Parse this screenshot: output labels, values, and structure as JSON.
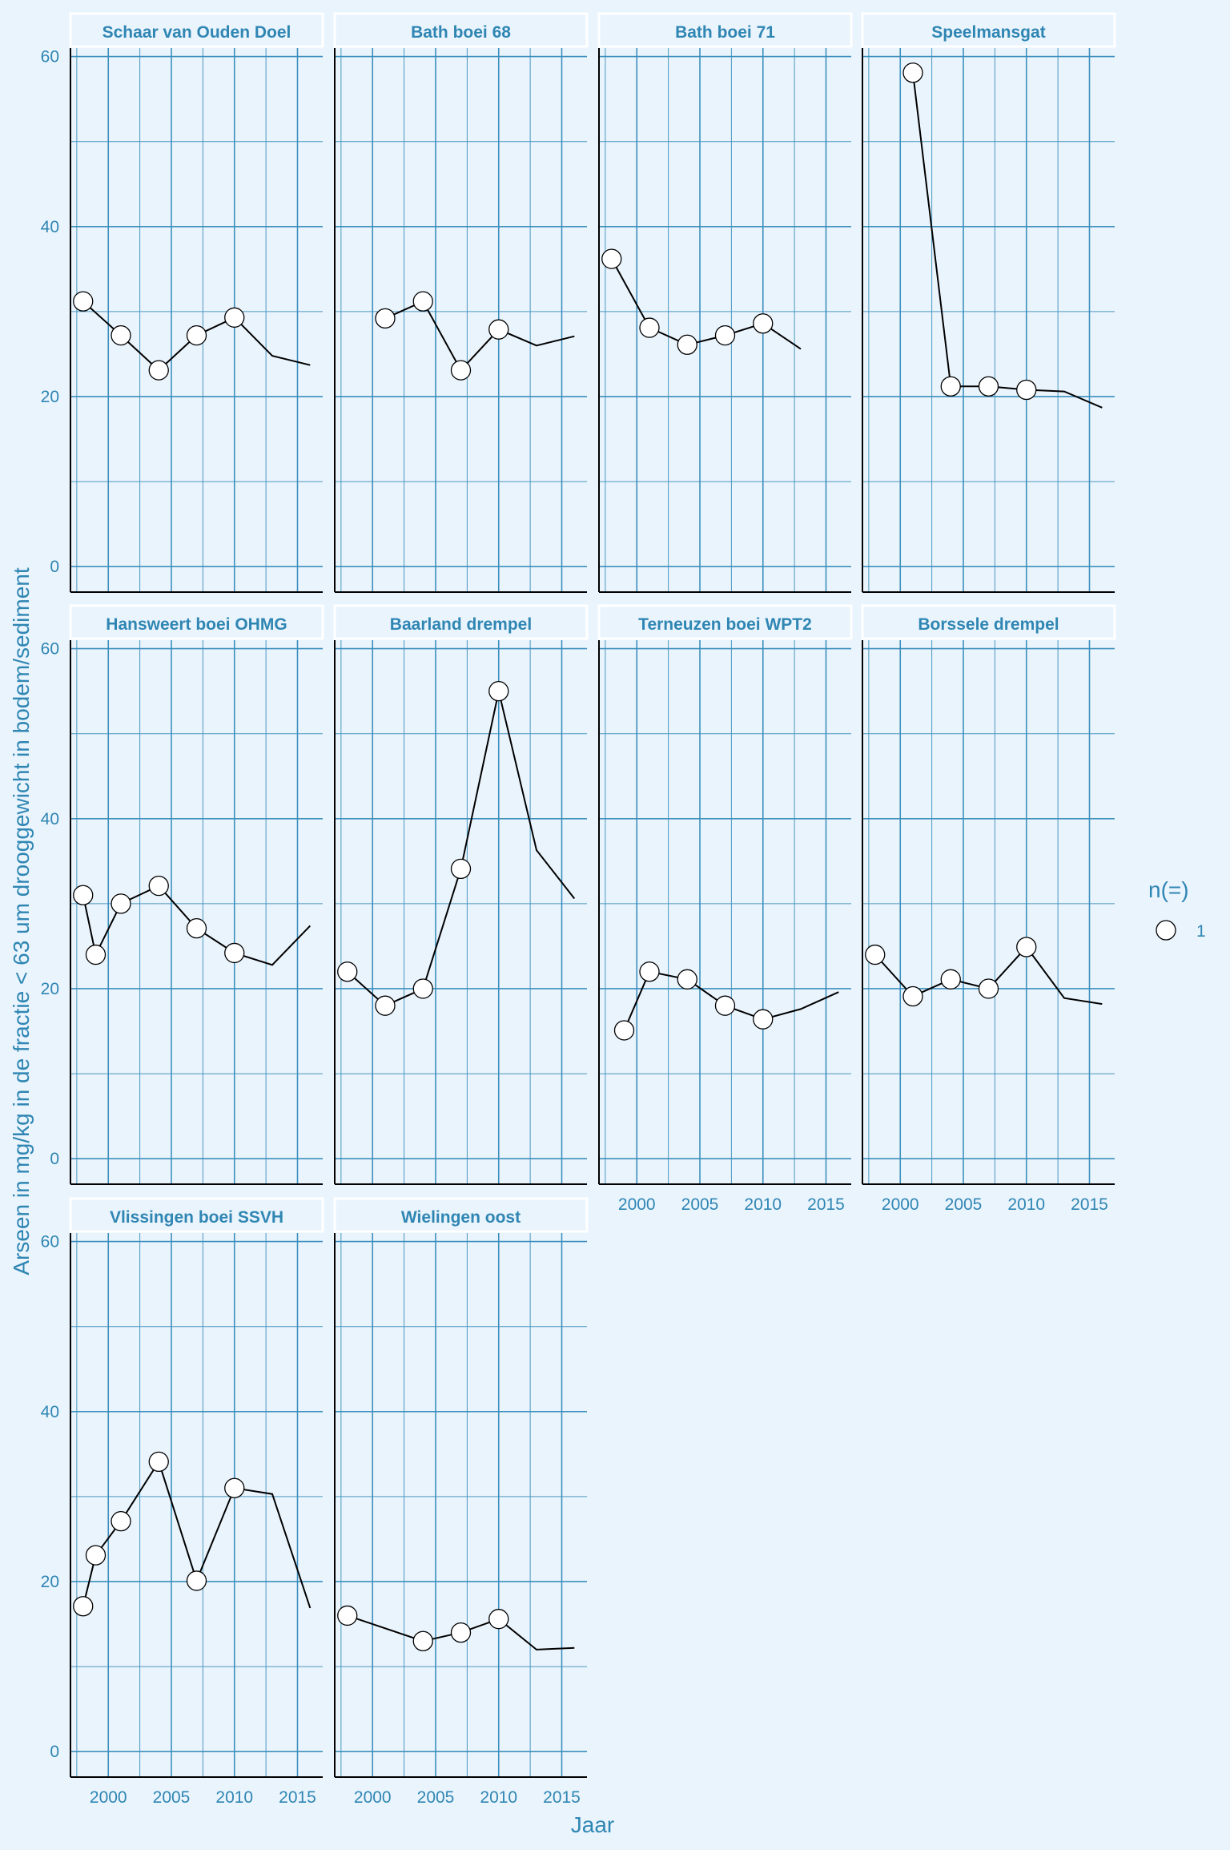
{
  "chart_data": {
    "type": "line",
    "xlabel": "Jaar",
    "ylabel": "Arseen in mg/kg in de fractie < 63 um drooggewicht in bodem/sediment",
    "xlim": [
      1997,
      2017
    ],
    "ylim": [
      -3,
      61
    ],
    "x_ticks": [
      2000,
      2005,
      2010,
      2015
    ],
    "y_ticks": [
      0,
      20,
      40,
      60
    ],
    "grid": true,
    "legend": {
      "title": "n(=)",
      "label": "1",
      "position": "right"
    },
    "panels": [
      {
        "title": "Schaar van Ouden Doel",
        "line": [
          [
            1998,
            31.2
          ],
          [
            2001,
            27.2
          ],
          [
            2004,
            23.1
          ],
          [
            2007,
            27.2
          ],
          [
            2010,
            29.3
          ],
          [
            2013,
            24.8
          ],
          [
            2016,
            23.7
          ]
        ],
        "points": [
          [
            1998,
            31.2
          ],
          [
            2001,
            27.2
          ],
          [
            2004,
            23.1
          ],
          [
            2007,
            27.2
          ],
          [
            2010,
            29.3
          ]
        ]
      },
      {
        "title": "Bath boei 68",
        "line": [
          [
            2001,
            29.2
          ],
          [
            2004,
            31.2
          ],
          [
            2007,
            23.1
          ],
          [
            2010,
            27.9
          ],
          [
            2013,
            26.0
          ],
          [
            2016,
            27.1
          ]
        ],
        "points": [
          [
            2001,
            29.2
          ],
          [
            2004,
            31.2
          ],
          [
            2007,
            23.1
          ],
          [
            2010,
            27.9
          ]
        ]
      },
      {
        "title": "Bath boei 71",
        "line": [
          [
            1998,
            36.2
          ],
          [
            2001,
            28.1
          ],
          [
            2004,
            26.1
          ],
          [
            2007,
            27.2
          ],
          [
            2010,
            28.6
          ],
          [
            2013,
            25.6
          ]
        ],
        "points": [
          [
            1998,
            36.2
          ],
          [
            2001,
            28.1
          ],
          [
            2004,
            26.1
          ],
          [
            2007,
            27.2
          ],
          [
            2010,
            28.6
          ]
        ]
      },
      {
        "title": "Speelmansgat",
        "line": [
          [
            2001,
            58.1
          ],
          [
            2004,
            21.2
          ],
          [
            2007,
            21.2
          ],
          [
            2010,
            20.8
          ],
          [
            2013,
            20.6
          ],
          [
            2016,
            18.7
          ]
        ],
        "points": [
          [
            2001,
            58.1
          ],
          [
            2004,
            21.2
          ],
          [
            2007,
            21.2
          ],
          [
            2010,
            20.8
          ]
        ]
      },
      {
        "title": "Hansweert boei OHMG",
        "line": [
          [
            1998,
            31.0
          ],
          [
            1999,
            24.0
          ],
          [
            2001,
            30.0
          ],
          [
            2004,
            32.1
          ],
          [
            2007,
            27.1
          ],
          [
            2010,
            24.2
          ],
          [
            2013,
            22.8
          ],
          [
            2016,
            27.4
          ]
        ],
        "points": [
          [
            1998,
            31.0
          ],
          [
            1999,
            24.0
          ],
          [
            2001,
            30.0
          ],
          [
            2004,
            32.1
          ],
          [
            2007,
            27.1
          ],
          [
            2010,
            24.2
          ]
        ]
      },
      {
        "title": "Baarland drempel",
        "line": [
          [
            1998,
            22.0
          ],
          [
            2001,
            18.0
          ],
          [
            2004,
            20.0
          ],
          [
            2007,
            34.1
          ],
          [
            2010,
            55.0
          ],
          [
            2013,
            36.3
          ],
          [
            2016,
            30.6
          ]
        ],
        "points": [
          [
            1998,
            22.0
          ],
          [
            2001,
            18.0
          ],
          [
            2004,
            20.0
          ],
          [
            2007,
            34.1
          ],
          [
            2010,
            55.0
          ]
        ]
      },
      {
        "title": "Terneuzen boei WPT2",
        "line": [
          [
            1999,
            15.1
          ],
          [
            2001,
            22.0
          ],
          [
            2004,
            21.1
          ],
          [
            2007,
            18.0
          ],
          [
            2010,
            16.4
          ],
          [
            2013,
            17.6
          ],
          [
            2016,
            19.6
          ]
        ],
        "points": [
          [
            1999,
            15.1
          ],
          [
            2001,
            22.0
          ],
          [
            2004,
            21.1
          ],
          [
            2007,
            18.0
          ],
          [
            2010,
            16.4
          ]
        ]
      },
      {
        "title": "Borssele drempel",
        "line": [
          [
            1998,
            24.0
          ],
          [
            2001,
            19.1
          ],
          [
            2004,
            21.1
          ],
          [
            2007,
            20.0
          ],
          [
            2010,
            24.9
          ],
          [
            2013,
            18.9
          ],
          [
            2016,
            18.2
          ]
        ],
        "points": [
          [
            1998,
            24.0
          ],
          [
            2001,
            19.1
          ],
          [
            2004,
            21.1
          ],
          [
            2007,
            20.0
          ],
          [
            2010,
            24.9
          ]
        ]
      },
      {
        "title": "Vlissingen boei SSVH",
        "line": [
          [
            1998,
            17.1
          ],
          [
            1999,
            23.1
          ],
          [
            2001,
            27.1
          ],
          [
            2004,
            34.1
          ],
          [
            2007,
            20.1
          ],
          [
            2010,
            31.0
          ],
          [
            2013,
            30.3
          ],
          [
            2016,
            16.9
          ]
        ],
        "points": [
          [
            1998,
            17.1
          ],
          [
            1999,
            23.1
          ],
          [
            2001,
            27.1
          ],
          [
            2004,
            34.1
          ],
          [
            2007,
            20.1
          ],
          [
            2010,
            31.0
          ]
        ]
      },
      {
        "title": "Wielingen oost",
        "line": [
          [
            1998,
            16.0
          ],
          [
            2004,
            13.0
          ],
          [
            2007,
            14.0
          ],
          [
            2010,
            15.6
          ],
          [
            2013,
            12.0
          ],
          [
            2016,
            12.2
          ]
        ],
        "points": [
          [
            1998,
            16.0
          ],
          [
            2004,
            13.0
          ],
          [
            2007,
            14.0
          ],
          [
            2010,
            15.6
          ]
        ]
      }
    ]
  }
}
